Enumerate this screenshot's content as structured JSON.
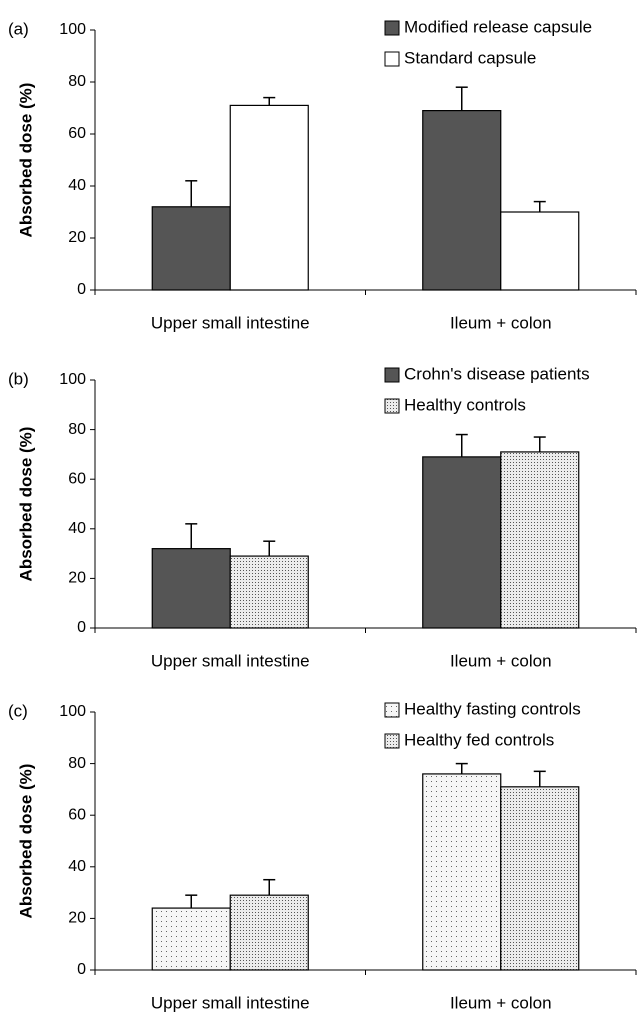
{
  "chart_data": [
    {
      "type": "bar",
      "label": "(a)",
      "ylabel": "Absorbed dose (%)",
      "categories": [
        "Upper small intestine",
        "Ileum + colon"
      ],
      "series": [
        {
          "name": "Modified release capsule",
          "color": "#555555",
          "pattern": "none",
          "values": [
            32,
            69
          ],
          "errors": [
            10,
            9
          ]
        },
        {
          "name": "Standard capsule",
          "color": "#ffffff",
          "pattern": "none",
          "values": [
            71,
            30
          ],
          "errors": [
            3,
            4
          ]
        }
      ],
      "ylim": [
        0,
        100
      ],
      "yticks": [
        0,
        20,
        40,
        60,
        80,
        100
      ],
      "legend": "top-right"
    },
    {
      "type": "bar",
      "label": "(b)",
      "ylabel": "Absorbed dose (%)",
      "categories": [
        "Upper small intestine",
        "Ileum + colon"
      ],
      "series": [
        {
          "name": "Crohn's disease patients",
          "color": "#555555",
          "pattern": "none",
          "values": [
            32,
            69
          ],
          "errors": [
            10,
            9
          ]
        },
        {
          "name": "Healthy controls",
          "color": "#e8e8e8",
          "pattern": "dense-dots",
          "values": [
            29,
            71
          ],
          "errors": [
            6,
            6
          ]
        }
      ],
      "ylim": [
        0,
        100
      ],
      "yticks": [
        0,
        20,
        40,
        60,
        80,
        100
      ],
      "legend": "top-right"
    },
    {
      "type": "bar",
      "label": "(c)",
      "ylabel": "Absorbed dose (%)",
      "categories": [
        "Upper small intestine",
        "Ileum + colon"
      ],
      "series": [
        {
          "name": "Healthy fasting controls",
          "color": "#f4f4f4",
          "pattern": "sparse-dots",
          "values": [
            24,
            76
          ],
          "errors": [
            5,
            4
          ]
        },
        {
          "name": "Healthy fed controls",
          "color": "#e8e8e8",
          "pattern": "dense-dots",
          "values": [
            29,
            71
          ],
          "errors": [
            6,
            6
          ]
        }
      ],
      "ylim": [
        0,
        100
      ],
      "yticks": [
        0,
        20,
        40,
        60,
        80,
        100
      ],
      "legend": "top-right"
    }
  ]
}
